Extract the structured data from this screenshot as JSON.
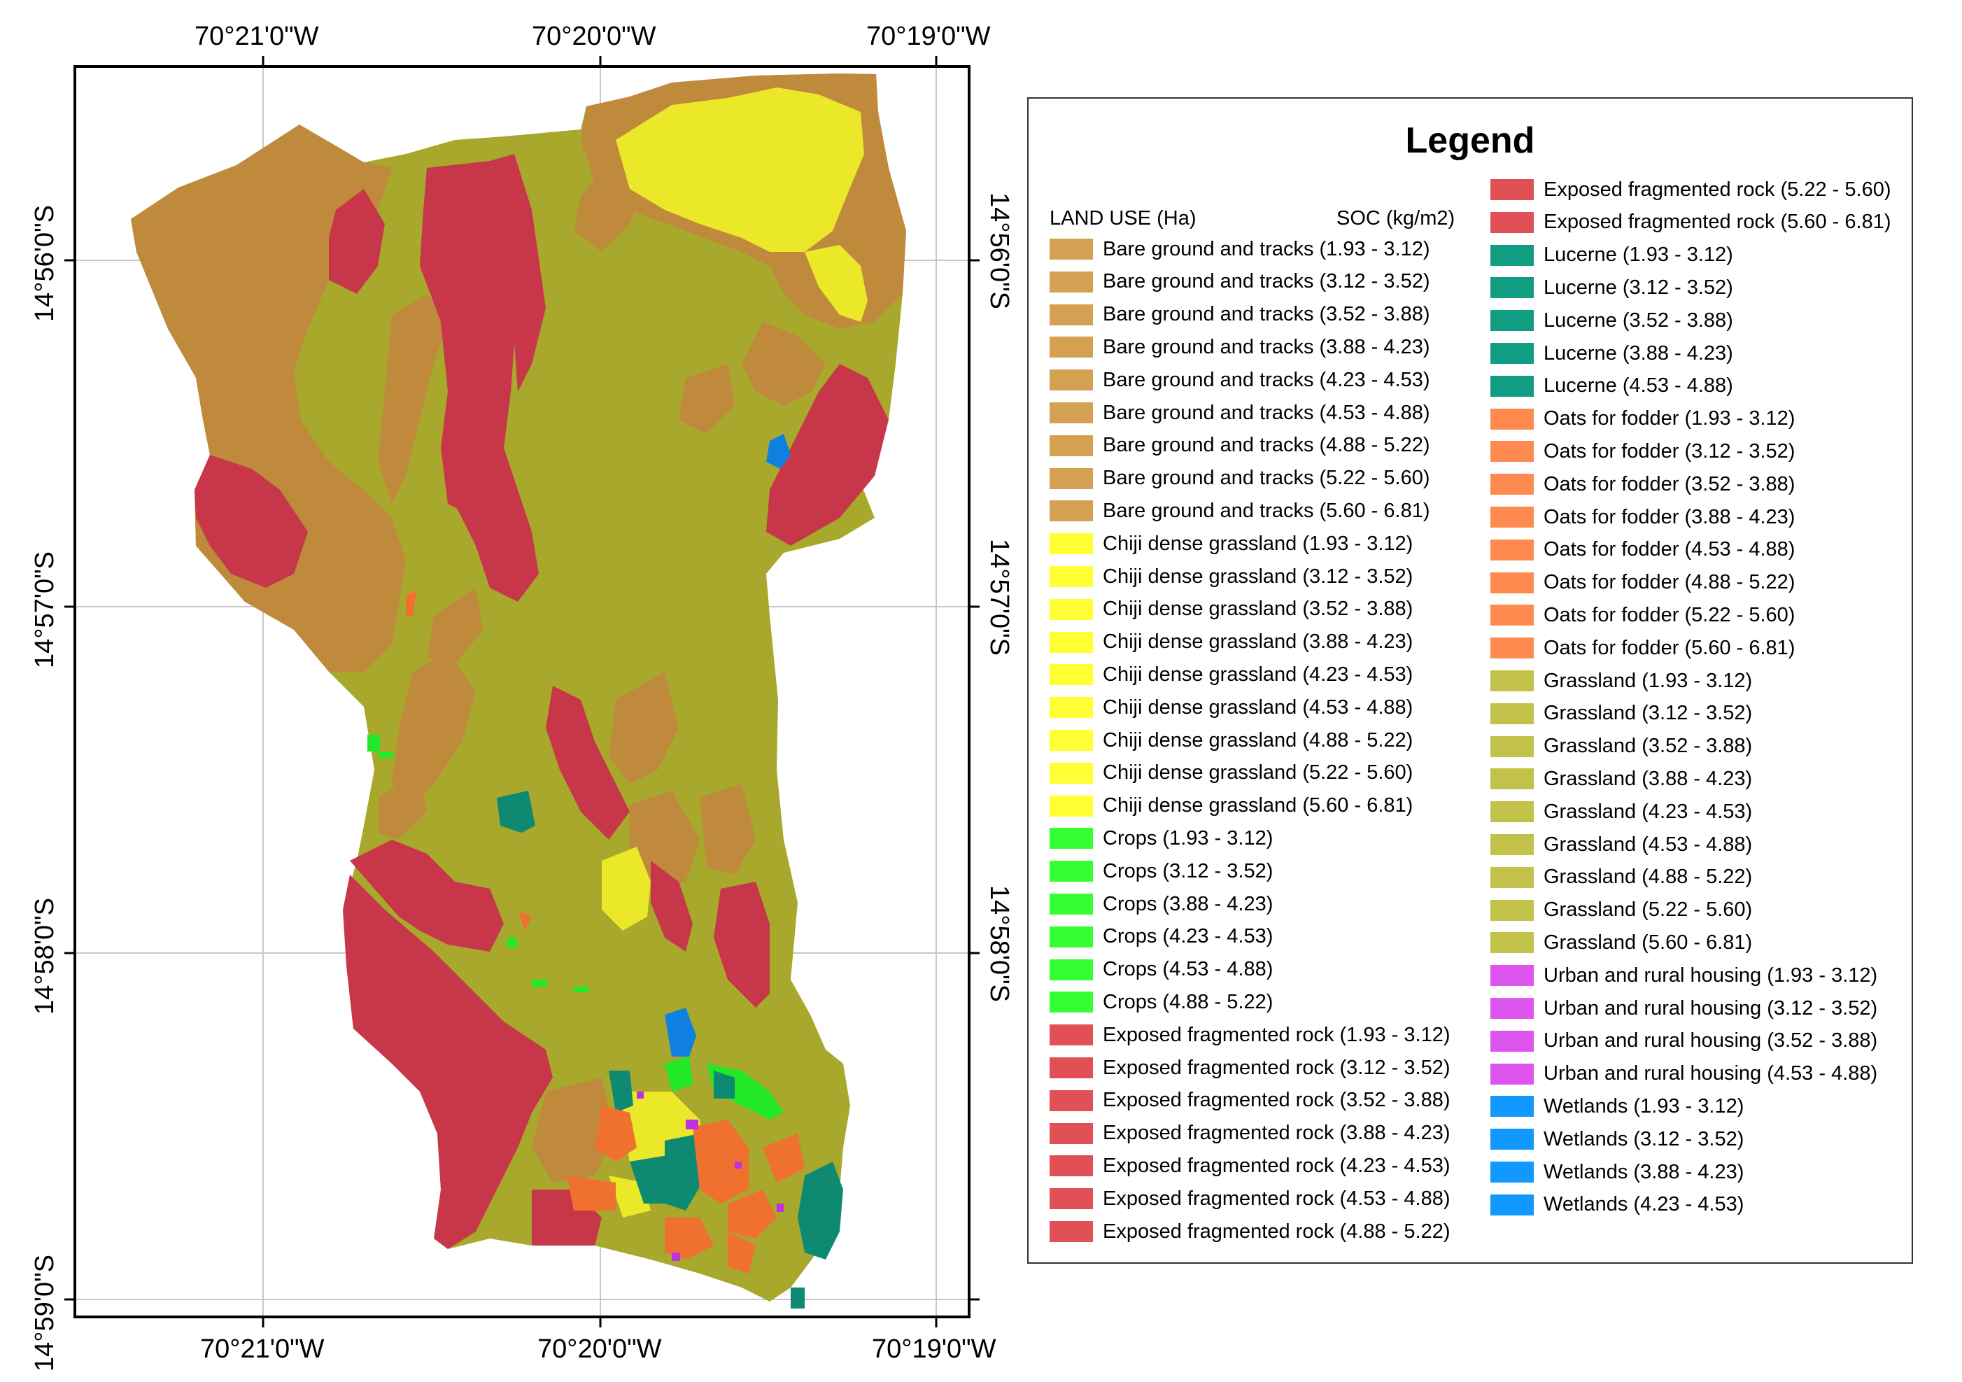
{
  "map": {
    "top_lon_labels": [
      "70°21'0\"W",
      "70°20'0\"W",
      "70°19'0\"W"
    ],
    "bottom_lon_labels": [
      "70°21'0\"W",
      "70°20'0\"W",
      "70°19'0\"W"
    ],
    "left_lat_labels": [
      "14°56'0\"S",
      "14°57'0\"S",
      "14°58'0\"S",
      "14°59'0\"S"
    ],
    "right_lat_labels": [
      "14°56'0\"S",
      "14°57'0\"S",
      "14°58'0\"S"
    ],
    "colors": {
      "grassland": "#a7a82c",
      "bare": "#c08a3c",
      "rock": "#c8364a",
      "chiji": "#ebe82a",
      "crops": "#22e82a",
      "lucerne": "#0f8a72",
      "oats": "#f07030",
      "urban": "#c030e0",
      "wetlands": "#1080e0"
    }
  },
  "legend": {
    "title": "Legend",
    "header_land_use": "LAND USE (Ha)",
    "header_soc": "SOC (kg/m2)",
    "col1": [
      {
        "label": "Bare ground and tracks (1.93 - 3.12)",
        "color": "#d4a051"
      },
      {
        "label": "Bare ground and tracks (3.12 - 3.52)",
        "color": "#d4a051"
      },
      {
        "label": "Bare ground and tracks (3.52 - 3.88)",
        "color": "#d4a051"
      },
      {
        "label": "Bare ground and tracks (3.88 - 4.23)",
        "color": "#d4a051"
      },
      {
        "label": "Bare ground and tracks (4.23 - 4.53)",
        "color": "#d4a051"
      },
      {
        "label": "Bare ground and tracks (4.53 - 4.88)",
        "color": "#d4a051"
      },
      {
        "label": "Bare ground and tracks (4.88 - 5.22)",
        "color": "#d4a051"
      },
      {
        "label": "Bare ground and tracks (5.22 - 5.60)",
        "color": "#d4a051"
      },
      {
        "label": "Bare ground and tracks (5.60 - 6.81)",
        "color": "#d4a051"
      },
      {
        "label": "Chiji dense grassland (1.93 - 3.12)",
        "color": "#ffff33"
      },
      {
        "label": "Chiji dense grassland (3.12 - 3.52)",
        "color": "#ffff33"
      },
      {
        "label": "Chiji dense grassland (3.52 - 3.88)",
        "color": "#ffff33"
      },
      {
        "label": "Chiji dense grassland (3.88 - 4.23)",
        "color": "#ffff33"
      },
      {
        "label": "Chiji dense grassland (4.23 - 4.53)",
        "color": "#ffff33"
      },
      {
        "label": "Chiji dense grassland (4.53 - 4.88)",
        "color": "#ffff33"
      },
      {
        "label": "Chiji dense grassland (4.88 - 5.22)",
        "color": "#ffff33"
      },
      {
        "label": "Chiji dense grassland (5.22 - 5.60)",
        "color": "#ffff33"
      },
      {
        "label": "Chiji dense grassland (5.60 - 6.81)",
        "color": "#ffff33"
      },
      {
        "label": "Crops (1.93 - 3.12)",
        "color": "#33ff33"
      },
      {
        "label": "Crops (3.12 - 3.52)",
        "color": "#33ff33"
      },
      {
        "label": "Crops (3.88 - 4.23)",
        "color": "#33ff33"
      },
      {
        "label": "Crops (4.23 - 4.53)",
        "color": "#33ff33"
      },
      {
        "label": "Crops (4.53 - 4.88)",
        "color": "#33ff33"
      },
      {
        "label": "Crops (4.88 - 5.22)",
        "color": "#33ff33"
      },
      {
        "label": "Exposed fragmented rock (1.93 - 3.12)",
        "color": "#e05055"
      },
      {
        "label": "Exposed fragmented rock (3.12 - 3.52)",
        "color": "#e05055"
      },
      {
        "label": "Exposed fragmented rock (3.52 - 3.88)",
        "color": "#e05055"
      },
      {
        "label": "Exposed fragmented rock (3.88 - 4.23)",
        "color": "#e05055"
      },
      {
        "label": "Exposed fragmented rock (4.23 - 4.53)",
        "color": "#e05055"
      },
      {
        "label": "Exposed fragmented rock (4.53 - 4.88)",
        "color": "#e05055"
      },
      {
        "label": "Exposed fragmented rock (4.88 - 5.22)",
        "color": "#e05055"
      }
    ],
    "col2": [
      {
        "label": "Exposed fragmented rock (5.22 - 5.60)",
        "color": "#e05055"
      },
      {
        "label": "Exposed fragmented rock (5.60 - 6.81)",
        "color": "#e05055"
      },
      {
        "label": "Lucerne (1.93 - 3.12)",
        "color": "#119c84"
      },
      {
        "label": "Lucerne (3.12 - 3.52)",
        "color": "#119c84"
      },
      {
        "label": "Lucerne (3.52 - 3.88)",
        "color": "#119c84"
      },
      {
        "label": "Lucerne (3.88 - 4.23)",
        "color": "#119c84"
      },
      {
        "label": "Lucerne (4.53 - 4.88)",
        "color": "#119c84"
      },
      {
        "label": "Oats for fodder (1.93 - 3.12)",
        "color": "#ff8a50"
      },
      {
        "label": "Oats for fodder (3.12 - 3.52)",
        "color": "#ff8a50"
      },
      {
        "label": "Oats for fodder (3.52 - 3.88)",
        "color": "#ff8a50"
      },
      {
        "label": "Oats for fodder (3.88 - 4.23)",
        "color": "#ff8a50"
      },
      {
        "label": "Oats for fodder (4.53 - 4.88)",
        "color": "#ff8a50"
      },
      {
        "label": "Oats for fodder (4.88 - 5.22)",
        "color": "#ff8a50"
      },
      {
        "label": "Oats for fodder (5.22 - 5.60)",
        "color": "#ff8a50"
      },
      {
        "label": "Oats for fodder (5.60 - 6.81)",
        "color": "#ff8a50"
      },
      {
        "label": "Grassland (1.93 - 3.12)",
        "color": "#c2c24a"
      },
      {
        "label": "Grassland (3.12 - 3.52)",
        "color": "#c2c24a"
      },
      {
        "label": "Grassland (3.52 - 3.88)",
        "color": "#c2c24a"
      },
      {
        "label": "Grassland (3.88 - 4.23)",
        "color": "#c2c24a"
      },
      {
        "label": "Grassland  (4.23 - 4.53)",
        "color": "#c2c24a"
      },
      {
        "label": "Grassland (4.53 - 4.88)",
        "color": "#c2c24a"
      },
      {
        "label": "Grassland (4.88 - 5.22)",
        "color": "#c2c24a"
      },
      {
        "label": "Grassland (5.22 - 5.60)",
        "color": "#c2c24a"
      },
      {
        "label": "Grassland (5.60 - 6.81)",
        "color": "#c2c24a"
      },
      {
        "label": "Urban and rural housing (1.93 - 3.12)",
        "color": "#dd55ee"
      },
      {
        "label": "Urban and rural housing (3.12 - 3.52)",
        "color": "#dd55ee"
      },
      {
        "label": "Urban and rural housing (3.52 - 3.88)",
        "color": "#dd55ee"
      },
      {
        "label": "Urban and rural housing (4.53 - 4.88)",
        "color": "#dd55ee"
      },
      {
        "label": "Wetlands (1.93 - 3.12)",
        "color": "#1199ff"
      },
      {
        "label": "Wetlands (3.12 - 3.52)",
        "color": "#1199ff"
      },
      {
        "label": "Wetlands (3.88 - 4.23)",
        "color": "#1199ff"
      },
      {
        "label": "Wetlands (4.23 - 4.53)",
        "color": "#1199ff"
      }
    ]
  }
}
